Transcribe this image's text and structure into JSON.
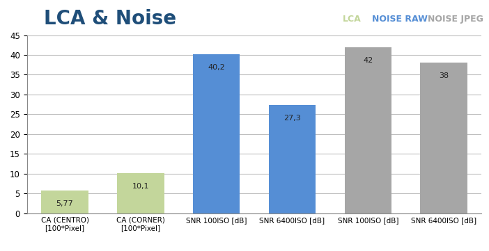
{
  "chart_data": {
    "type": "bar",
    "title": "LCA & Noise",
    "categories": [
      "CA (CENTRO)\n[100*Pixel]",
      "CA (CORNER)\n[100*Pixel]",
      "SNR 100ISO [dB]",
      "SNR 6400ISO [dB]",
      "SNR 100ISO [dB]",
      "SNR 6400ISO [dB]"
    ],
    "series": [
      {
        "name": "LCA",
        "color": "#c3d69b",
        "values": [
          5.77,
          10.1,
          null,
          null,
          null,
          null
        ],
        "value_labels": [
          "5,77",
          "10,1",
          null,
          null,
          null,
          null
        ]
      },
      {
        "name": "NOISE RAW",
        "color": "#558ed5",
        "values": [
          null,
          null,
          40.2,
          27.3,
          null,
          null
        ],
        "value_labels": [
          null,
          null,
          "40,2",
          "27,3",
          null,
          null
        ]
      },
      {
        "name": "NOISE JPEG",
        "color": "#a6a6a6",
        "values": [
          null,
          null,
          null,
          null,
          42,
          38
        ],
        "value_labels": [
          null,
          null,
          null,
          null,
          "42",
          "38"
        ]
      }
    ],
    "ylim": [
      0,
      45
    ],
    "yticks": [
      0,
      5,
      10,
      15,
      20,
      25,
      30,
      35,
      40,
      45
    ],
    "grid": true,
    "data_labels": true
  }
}
